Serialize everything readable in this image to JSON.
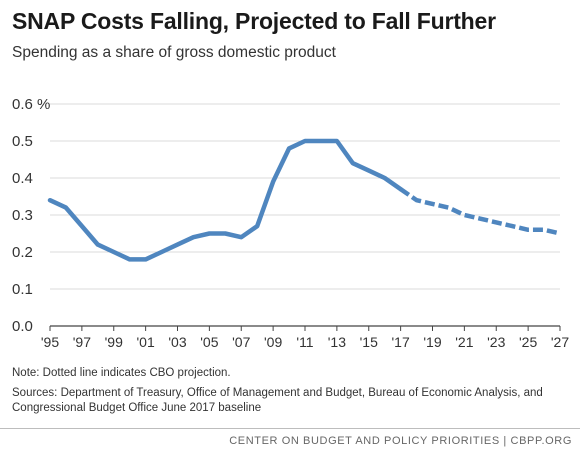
{
  "title": "SNAP Costs Falling, Projected to Fall Further",
  "subtitle": "Spending as a share of gross domestic product",
  "note": "Note: Dotted line indicates CBO projection.",
  "sources": "Sources: Department of Treasury, Office of Management and Budget, Bureau of Economic Analysis, and Congressional Budget Office June 2017 baseline",
  "credit": "CENTER ON BUDGET AND POLICY PRIORITIES | CBPP.ORG",
  "chart_data": {
    "type": "line",
    "title": "SNAP Costs Falling, Projected to Fall Further",
    "subtitle": "Spending as a share of gross domestic product",
    "x_ticks": [
      1995,
      1997,
      1999,
      2001,
      2003,
      2005,
      2007,
      2009,
      2011,
      2013,
      2015,
      2017,
      2019,
      2021,
      2023,
      2025,
      2027
    ],
    "x_tick_labels": [
      "'95",
      "'97",
      "'99",
      "'01",
      "'03",
      "'05",
      "'07",
      "'09",
      "'11",
      "'13",
      "'15",
      "'17",
      "'19",
      "'21",
      "'23",
      "'25",
      "'27"
    ],
    "xlim": [
      1995,
      2027
    ],
    "y_ticks": [
      0,
      0.1,
      0.2,
      0.3,
      0.4,
      0.5,
      0.6
    ],
    "y_tick_labels": [
      "0.0",
      "0.1",
      "0.2",
      "0.3",
      "0.4",
      "0.5",
      "0.6 %"
    ],
    "ylim": [
      0,
      0.6
    ],
    "grid": "horizontal",
    "color": "#4f86bf",
    "series": [
      {
        "style": "solid",
        "x": [
          1995,
          1996,
          1997,
          1998,
          1999,
          2000,
          2001,
          2002,
          2003,
          2004,
          2005,
          2006,
          2007,
          2008,
          2009,
          2010,
          2011,
          2012,
          2013,
          2014,
          2015,
          2016,
          2017
        ],
        "values": [
          0.34,
          0.32,
          0.27,
          0.22,
          0.2,
          0.18,
          0.18,
          0.2,
          0.22,
          0.24,
          0.25,
          0.25,
          0.24,
          0.27,
          0.39,
          0.48,
          0.5,
          0.5,
          0.5,
          0.44,
          0.42,
          0.4,
          0.37
        ]
      },
      {
        "style": "dotted",
        "x": [
          2017,
          2018,
          2019,
          2020,
          2021,
          2022,
          2023,
          2024,
          2025,
          2026,
          2027
        ],
        "values": [
          0.37,
          0.34,
          0.33,
          0.32,
          0.3,
          0.29,
          0.28,
          0.27,
          0.26,
          0.26,
          0.25
        ]
      }
    ]
  }
}
